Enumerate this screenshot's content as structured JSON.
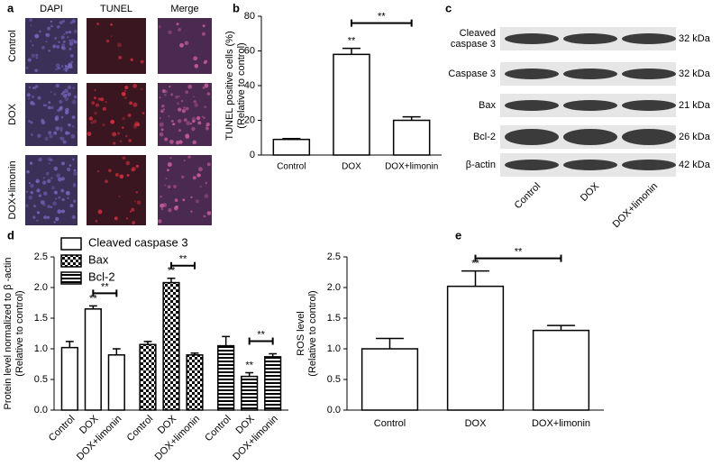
{
  "panel_labels": [
    "a",
    "b",
    "c",
    "d",
    "e"
  ],
  "images": {
    "columns": [
      "DAPI",
      "TUNEL",
      "Merge"
    ],
    "rows": [
      "Control",
      "DOX",
      "DOX+limonin"
    ]
  },
  "blot": {
    "proteins": [
      "Cleaved caspase 3",
      "Caspase 3",
      "Bax",
      "Bcl-2",
      "β-actin"
    ],
    "sizes": [
      "32 kDa",
      "32 kDa",
      "21 kDa",
      "26 kDa",
      "42 kDa"
    ],
    "lanes": [
      "Control",
      "DOX",
      "DOX+limonin"
    ]
  },
  "chart_data": [
    {
      "type": "bar",
      "ylabel": [
        "TUNEL positive cells (%)",
        "(Relative to control)"
      ],
      "categories": [
        "Control",
        "DOX",
        "DOX+limonin"
      ],
      "values": [
        9,
        58,
        20
      ],
      "errors": [
        0.5,
        3.5,
        2
      ],
      "color": "#ffffff",
      "ylim": [
        0,
        80
      ],
      "yticks": [
        0,
        20,
        40,
        60,
        80
      ],
      "annotations": [
        {
          "text": "**",
          "category": 1
        },
        {
          "text": "**",
          "between": [
            1,
            2
          ]
        }
      ]
    },
    {
      "type": "grouped_bar",
      "ylabel": [
        "Protein level normalized to β -actin",
        "(Relative to control)"
      ],
      "categories": [
        "Control",
        "DOX",
        "DOX+limonin"
      ],
      "series": [
        {
          "name": "Cleaved caspase 3",
          "pattern": "none",
          "values": [
            1.02,
            1.65,
            0.9
          ],
          "errors": [
            0.1,
            0.05,
            0.1
          ],
          "annotations": [
            {
              "text": "**",
              "category": 1
            },
            {
              "text": "**",
              "between": [
                1,
                2
              ]
            }
          ]
        },
        {
          "name": "Bax",
          "pattern": "checker",
          "values": [
            1.07,
            2.08,
            0.9
          ],
          "errors": [
            0.05,
            0.07,
            0.03
          ],
          "annotations": [
            {
              "text": "**",
              "category": 1
            },
            {
              "text": "**",
              "between": [
                1,
                2
              ]
            }
          ]
        },
        {
          "name": "Bcl-2",
          "pattern": "hlines",
          "values": [
            1.05,
            0.55,
            0.87
          ],
          "errors": [
            0.15,
            0.06,
            0.05
          ],
          "annotations": [
            {
              "text": "**",
              "category": 1
            },
            {
              "text": "**",
              "between": [
                1,
                2
              ]
            }
          ]
        }
      ],
      "ylim": [
        0,
        2.5
      ],
      "yticks": [
        {
          "value": 0,
          "label": "0.0"
        },
        {
          "value": 0.5,
          "label": "0.5"
        },
        {
          "value": 1,
          "label": "1.0"
        },
        {
          "value": 1.5,
          "label": "1.5"
        },
        {
          "value": 2,
          "label": "2.0"
        },
        {
          "value": 2.5,
          "label": "2.5"
        }
      ]
    },
    {
      "type": "bar",
      "ylabel": [
        "ROS level",
        "(Relative to control)"
      ],
      "categories": [
        "Control",
        "DOX",
        "DOX+limonin"
      ],
      "values": [
        1.0,
        2.02,
        1.3
      ],
      "errors": [
        0.17,
        0.25,
        0.08
      ],
      "color": "#ffffff",
      "ylim": [
        0,
        2.5
      ],
      "yticks": [
        {
          "value": 0,
          "label": "0.0"
        },
        {
          "value": 0.5,
          "label": "0.5"
        },
        {
          "value": 1,
          "label": "1.0"
        },
        {
          "value": 1.5,
          "label": "1.5"
        },
        {
          "value": 2,
          "label": "2.0"
        },
        {
          "value": 2.5,
          "label": "2.5"
        }
      ],
      "annotations": [
        {
          "text": "**",
          "category": 1
        },
        {
          "text": "**",
          "between": [
            1,
            2
          ]
        }
      ]
    }
  ]
}
